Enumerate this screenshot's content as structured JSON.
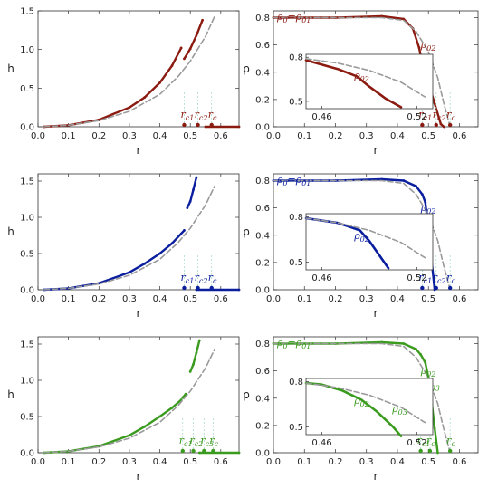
{
  "colors": {
    "red": "#8b1a10",
    "blue": "#0a1e9e",
    "green": "#3a9b1e",
    "ref": "#9a9a9a",
    "axis": "#333333"
  },
  "chart_data": [
    {
      "type": "line",
      "panel": "h-vs-r",
      "row": 1,
      "color_key": "red",
      "xlabel": "r",
      "ylabel": "h",
      "xlim": [
        0,
        0.66
      ],
      "ylim": [
        0,
        1.5
      ],
      "xticks": [
        "0.0",
        "0.1",
        "0.2",
        "0.3",
        "0.4",
        "0.5",
        "0.6"
      ],
      "yticks": [
        "0.0",
        "0.5",
        "1.0",
        "1.5"
      ],
      "series": [
        {
          "style": "solid",
          "x": [
            0.02,
            0.1,
            0.2,
            0.3,
            0.35,
            0.4,
            0.44,
            0.47
          ],
          "y": [
            0.0,
            0.02,
            0.09,
            0.25,
            0.38,
            0.57,
            0.79,
            1.02
          ]
        },
        {
          "style": "solid",
          "x": [
            0.48,
            0.5,
            0.52,
            0.54
          ],
          "y": [
            0.88,
            1.01,
            1.18,
            1.38
          ]
        },
        {
          "style": "dashed",
          "x": [
            0.02,
            0.1,
            0.2,
            0.3,
            0.4,
            0.46,
            0.5,
            0.55,
            0.58
          ],
          "y": [
            0.0,
            0.02,
            0.08,
            0.2,
            0.42,
            0.65,
            0.85,
            1.17,
            1.43
          ]
        },
        {
          "style": "solid",
          "x": [
            0.55,
            0.66
          ],
          "y": [
            0.0,
            0.0
          ]
        }
      ],
      "annotations": [
        {
          "text": "r",
          "sub": "c1",
          "x": 0.48
        },
        {
          "text": "r",
          "sub": "c2",
          "x": 0.525
        },
        {
          "text": "r",
          "sub": "c",
          "x": 0.57
        }
      ]
    },
    {
      "type": "line",
      "panel": "rho-vs-r",
      "row": 1,
      "color_key": "red",
      "xlabel": "r",
      "ylabel": "ρ",
      "xlim": [
        0,
        0.66
      ],
      "ylim": [
        0,
        0.85
      ],
      "xticks": [
        "0.0",
        "0.1",
        "0.2",
        "0.3",
        "0.4",
        "0.5",
        "0.6"
      ],
      "yticks": [
        "0.0",
        "0.2",
        "0.4",
        "0.6",
        "0.8"
      ],
      "series": [
        {
          "style": "solid",
          "x": [
            0.0,
            0.2,
            0.35,
            0.42,
            0.45,
            0.47,
            0.48,
            0.5,
            0.52,
            0.54,
            0.55
          ],
          "y": [
            0.8,
            0.8,
            0.81,
            0.79,
            0.72,
            0.58,
            0.47,
            0.32,
            0.17,
            0.02,
            0.0
          ]
        },
        {
          "style": "dashed",
          "x": [
            0.0,
            0.2,
            0.35,
            0.42,
            0.46,
            0.5,
            0.53,
            0.55,
            0.57
          ],
          "y": [
            0.8,
            0.8,
            0.8,
            0.78,
            0.7,
            0.55,
            0.36,
            0.17,
            0.0
          ]
        }
      ],
      "labels": [
        {
          "text": "ρ",
          "sub": "0",
          "eq": "=",
          "text2": "ρ",
          "sub2": "01"
        },
        {
          "text": "ρ",
          "sub": "02"
        }
      ],
      "annotations": [
        {
          "text": "r",
          "sub": "c1",
          "x": 0.48
        },
        {
          "text": "r",
          "sub": "c2",
          "x": 0.525
        },
        {
          "text": "r",
          "sub": "c",
          "x": 0.57
        }
      ],
      "inset": {
        "xlim": [
          0.45,
          0.53
        ],
        "ylim": [
          0.45,
          0.82
        ],
        "xticks": [
          "0.46",
          "0.52"
        ],
        "yticks": [
          "0.5",
          "0.8"
        ],
        "series": [
          {
            "style": "solid",
            "x": [
              0.45,
              0.47,
              0.482,
              0.49,
              0.5,
              0.51
            ],
            "y": [
              0.78,
              0.72,
              0.67,
              0.6,
              0.52,
              0.46
            ]
          },
          {
            "style": "dashed",
            "x": [
              0.45,
              0.47,
              0.49,
              0.51,
              0.525
            ],
            "y": [
              0.79,
              0.76,
              0.71,
              0.63,
              0.53
            ]
          }
        ],
        "labels": [
          {
            "text": "ρ",
            "sub": "02"
          }
        ]
      }
    },
    {
      "type": "line",
      "panel": "h-vs-r",
      "row": 2,
      "color_key": "blue",
      "xlabel": "r",
      "ylabel": "h",
      "xlim": [
        0,
        0.66
      ],
      "ylim": [
        0,
        1.6
      ],
      "xticks": [
        "0.0",
        "0.1",
        "0.2",
        "0.3",
        "0.4",
        "0.5",
        "0.6"
      ],
      "yticks": [
        "0.0",
        "0.5",
        "1.0",
        "1.5"
      ],
      "series": [
        {
          "style": "solid",
          "x": [
            0.02,
            0.1,
            0.2,
            0.3,
            0.35,
            0.4,
            0.44,
            0.48
          ],
          "y": [
            0.0,
            0.02,
            0.09,
            0.24,
            0.36,
            0.5,
            0.64,
            0.82
          ]
        },
        {
          "style": "solid",
          "x": [
            0.49,
            0.5,
            0.51,
            0.52
          ],
          "y": [
            1.13,
            1.22,
            1.38,
            1.55
          ]
        },
        {
          "style": "dashed",
          "x": [
            0.02,
            0.1,
            0.2,
            0.3,
            0.4,
            0.46,
            0.5,
            0.55,
            0.58
          ],
          "y": [
            0.0,
            0.02,
            0.08,
            0.2,
            0.42,
            0.65,
            0.85,
            1.17,
            1.43
          ]
        },
        {
          "style": "solid",
          "x": [
            0.52,
            0.66
          ],
          "y": [
            0.0,
            0.0
          ]
        }
      ],
      "annotations": [
        {
          "text": "r",
          "sub": "c1",
          "x": 0.48
        },
        {
          "text": "r",
          "sub": "c2",
          "x": 0.525
        },
        {
          "text": "r",
          "sub": "c",
          "x": 0.57
        }
      ]
    },
    {
      "type": "line",
      "panel": "rho-vs-r",
      "row": 2,
      "color_key": "blue",
      "xlabel": "r",
      "ylabel": "ρ",
      "xlim": [
        0,
        0.66
      ],
      "ylim": [
        0,
        0.85
      ],
      "xticks": [
        "0.0",
        "0.1",
        "0.2",
        "0.3",
        "0.4",
        "0.5",
        "0.6"
      ],
      "yticks": [
        "0.0",
        "0.2",
        "0.4",
        "0.6",
        "0.8"
      ],
      "series": [
        {
          "style": "solid",
          "x": [
            0.0,
            0.2,
            0.35,
            0.42,
            0.46,
            0.48,
            0.49,
            0.5,
            0.51,
            0.52
          ],
          "y": [
            0.8,
            0.8,
            0.81,
            0.8,
            0.76,
            0.7,
            0.64,
            0.44,
            0.22,
            0.0
          ]
        },
        {
          "style": "dashed",
          "x": [
            0.0,
            0.2,
            0.35,
            0.42,
            0.46,
            0.5,
            0.53,
            0.55,
            0.57
          ],
          "y": [
            0.8,
            0.8,
            0.8,
            0.78,
            0.7,
            0.55,
            0.36,
            0.17,
            0.0
          ]
        }
      ],
      "labels": [
        {
          "text": "ρ",
          "sub": "0",
          "eq": "=",
          "text2": "ρ",
          "sub2": "01"
        },
        {
          "text": "ρ",
          "sub": "02"
        }
      ],
      "annotations": [
        {
          "text": "r",
          "sub": "c1",
          "x": 0.48
        },
        {
          "text": "r",
          "sub": "c2",
          "x": 0.525
        },
        {
          "text": "r",
          "sub": "c",
          "x": 0.57
        }
      ],
      "inset": {
        "xlim": [
          0.45,
          0.53
        ],
        "ylim": [
          0.45,
          0.82
        ],
        "xticks": [
          "0.46",
          "0.52"
        ],
        "yticks": [
          "0.5",
          "0.8"
        ],
        "series": [
          {
            "style": "solid",
            "x": [
              0.45,
              0.47,
              0.484,
              0.49,
              0.496,
              0.502
            ],
            "y": [
              0.79,
              0.76,
              0.71,
              0.64,
              0.55,
              0.46
            ]
          },
          {
            "style": "dashed",
            "x": [
              0.45,
              0.47,
              0.49,
              0.51,
              0.525
            ],
            "y": [
              0.79,
              0.76,
              0.71,
              0.63,
              0.53
            ]
          }
        ],
        "labels": [
          {
            "text": "ρ",
            "sub": "02"
          }
        ]
      }
    },
    {
      "type": "line",
      "panel": "h-vs-r",
      "row": 3,
      "color_key": "green",
      "xlabel": "r",
      "ylabel": "h",
      "xlim": [
        0,
        0.66
      ],
      "ylim": [
        0,
        1.6
      ],
      "xticks": [
        "0.0",
        "0.1",
        "0.2",
        "0.3",
        "0.4",
        "0.5",
        "0.6"
      ],
      "yticks": [
        "0.0",
        "0.5",
        "1.0",
        "1.5"
      ],
      "series": [
        {
          "style": "solid",
          "x": [
            0.02,
            0.1,
            0.2,
            0.3,
            0.35,
            0.4,
            0.44,
            0.47
          ],
          "y": [
            0.0,
            0.02,
            0.09,
            0.24,
            0.36,
            0.5,
            0.62,
            0.73
          ]
        },
        {
          "style": "solid",
          "x": [
            0.475,
            0.485
          ],
          "y": [
            0.76,
            0.81
          ]
        },
        {
          "style": "solid",
          "x": [
            0.5,
            0.51,
            0.52,
            0.53
          ],
          "y": [
            1.12,
            1.22,
            1.38,
            1.55
          ]
        },
        {
          "style": "dashed",
          "x": [
            0.02,
            0.1,
            0.2,
            0.3,
            0.4,
            0.46,
            0.5,
            0.55,
            0.58
          ],
          "y": [
            0.0,
            0.02,
            0.08,
            0.2,
            0.42,
            0.65,
            0.85,
            1.17,
            1.43
          ]
        },
        {
          "style": "solid",
          "x": [
            0.53,
            0.66
          ],
          "y": [
            0.0,
            0.0
          ]
        }
      ],
      "annotations": [
        {
          "text": "r",
          "sub": "c1",
          "x": 0.475
        },
        {
          "text": "r",
          "sub": "c2",
          "x": 0.51
        },
        {
          "text": "r",
          "sub": "c3",
          "x": 0.545
        },
        {
          "text": "r",
          "sub": "c",
          "x": 0.575
        }
      ]
    },
    {
      "type": "line",
      "panel": "rho-vs-r",
      "row": 3,
      "color_key": "green",
      "xlabel": "r",
      "ylabel": "ρ",
      "xlim": [
        0,
        0.66
      ],
      "ylim": [
        0,
        0.85
      ],
      "xticks": [
        "0.0",
        "0.1",
        "0.2",
        "0.3",
        "0.4",
        "0.5",
        "0.6"
      ],
      "yticks": [
        "0.0",
        "0.2",
        "0.4",
        "0.6",
        "0.8"
      ],
      "series": [
        {
          "style": "solid",
          "x": [
            0.0,
            0.2,
            0.35,
            0.42,
            0.46,
            0.475,
            0.49,
            0.5,
            0.51,
            0.52,
            0.53
          ],
          "y": [
            0.8,
            0.8,
            0.81,
            0.8,
            0.76,
            0.72,
            0.66,
            0.55,
            0.38,
            0.18,
            0.0
          ]
        },
        {
          "style": "dashed",
          "x": [
            0.0,
            0.2,
            0.35,
            0.42,
            0.46,
            0.5,
            0.53,
            0.55,
            0.57
          ],
          "y": [
            0.8,
            0.8,
            0.8,
            0.78,
            0.7,
            0.55,
            0.36,
            0.17,
            0.0
          ]
        }
      ],
      "labels": [
        {
          "text": "ρ",
          "sub": "0",
          "eq": "=",
          "text2": "ρ",
          "sub2": "01"
        },
        {
          "text": "ρ",
          "sub": "02"
        },
        {
          "text": "ρ",
          "sub": "03"
        }
      ],
      "annotations": [
        {
          "text": "r",
          "sub": "c1",
          "x": 0.475
        },
        {
          "text": "r",
          "sub": "c",
          "x": 0.505
        },
        {
          "text": "r",
          "sub": "c",
          "x": 0.57
        }
      ],
      "inset": {
        "xlim": [
          0.45,
          0.53
        ],
        "ylim": [
          0.45,
          0.82
        ],
        "xticks": [
          "0.46",
          "0.52"
        ],
        "yticks": [
          "0.5",
          "0.8"
        ],
        "series": [
          {
            "style": "solid",
            "x": [
              0.45,
              0.46,
              0.473,
              0.485,
              0.495,
              0.505,
              0.51
            ],
            "y": [
              0.79,
              0.78,
              0.74,
              0.68,
              0.6,
              0.5,
              0.44
            ]
          },
          {
            "style": "dashed",
            "x": [
              0.45,
              0.47,
              0.49,
              0.51,
              0.525
            ],
            "y": [
              0.79,
              0.76,
              0.71,
              0.63,
              0.53
            ]
          }
        ],
        "labels": [
          {
            "text": "ρ",
            "sub": "02"
          },
          {
            "text": "ρ",
            "sub": "03"
          }
        ]
      }
    }
  ]
}
